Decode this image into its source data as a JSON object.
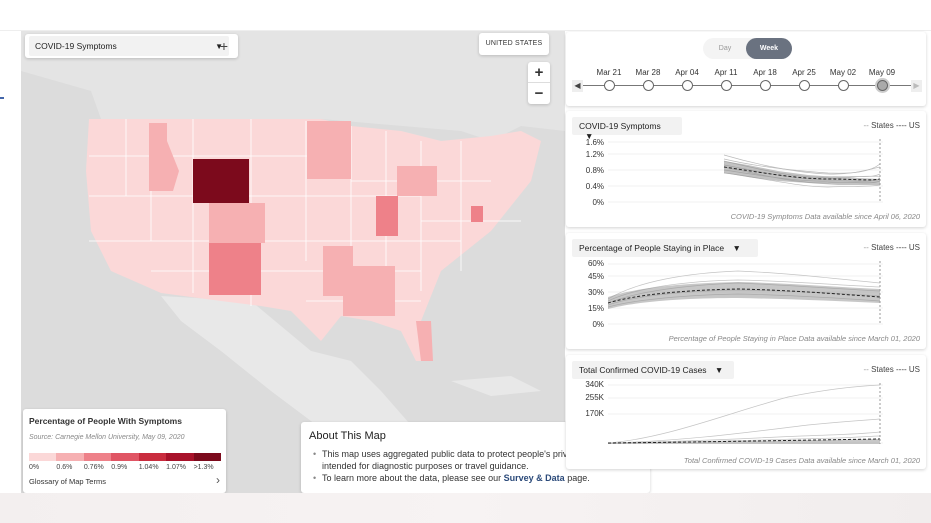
{
  "layer_select": {
    "value": "COVID-19 Symptoms",
    "add_label": "+"
  },
  "country_label": "UNITED STATES",
  "zoom": {
    "in": "+",
    "out": "−"
  },
  "legend": {
    "title": "Percentage of People With Symptoms",
    "source": "Source: Carnegie Mellon University, May 09, 2020",
    "bins": [
      "0%",
      "0.6%",
      "0.76%",
      "0.9%",
      "1.04%",
      "1.07%",
      ">1.3%"
    ],
    "colors": [
      "#fbd8d8",
      "#f6b0b2",
      "#ee8189",
      "#e05564",
      "#c92c3e",
      "#a8122a",
      "#7c0a1c"
    ],
    "glossary": "Glossary of Map Terms"
  },
  "about": {
    "title": "About This Map",
    "close": "✕",
    "line1": "This map uses aggregated public data to protect people's privacy, and is not intended for diagnostic purposes or travel guidance.",
    "line2_pre": "To learn more about the data, please see our",
    "line2_link": "Survey & Data",
    "line2_post": "page."
  },
  "timeline": {
    "day_label": "Day",
    "week_label": "Week",
    "selected": "Week",
    "dates": [
      "Mar 21",
      "Mar 28",
      "Apr 04",
      "Apr 11",
      "Apr 18",
      "Apr 25",
      "May 02",
      "May 09"
    ],
    "active_index": 7
  },
  "panels": [
    {
      "selector": "COVID-19 Symptoms",
      "legend_states": "States",
      "legend_us": "US",
      "y_ticks": [
        "1.6%",
        "1.2%",
        "0.8%",
        "0.4%",
        "0%"
      ],
      "footnote": "COVID-19 Symptoms Data available since April 06, 2020"
    },
    {
      "selector": "Percentage of People Staying in Place",
      "legend_states": "States",
      "legend_us": "US",
      "y_ticks": [
        "60%",
        "45%",
        "30%",
        "15%",
        "0%"
      ],
      "footnote": "Percentage of People Staying in Place Data available since March 01, 2020"
    },
    {
      "selector": "Total Confirmed COVID-19 Cases",
      "legend_states": "States",
      "legend_us": "US",
      "y_ticks": [
        "340K",
        "255K",
        "170K"
      ],
      "footnote": "Total Confirmed COVID-19 Cases Data available since March 01, 2020"
    }
  ]
}
